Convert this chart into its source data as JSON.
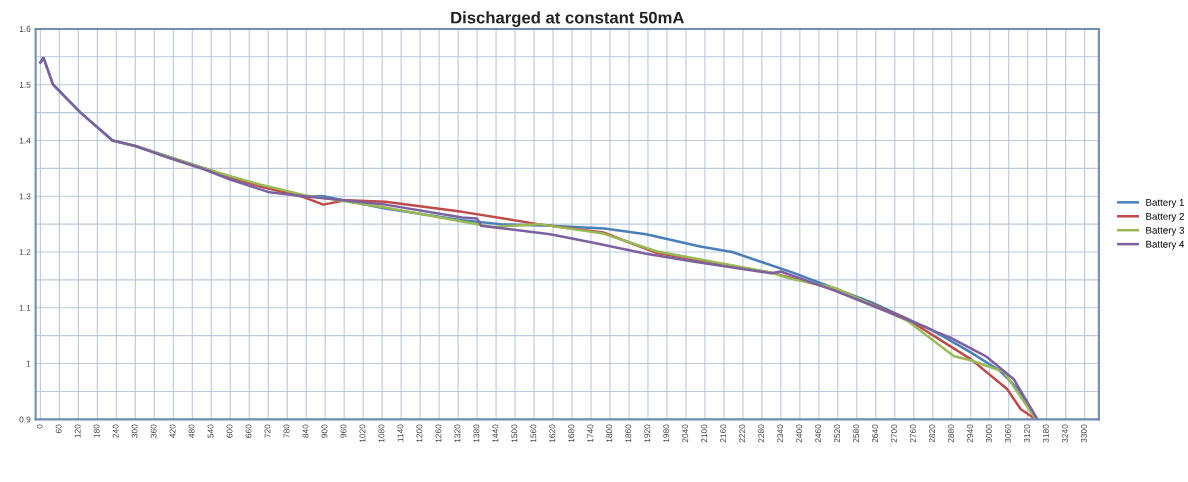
{
  "chart_data": {
    "type": "line",
    "title": "Discharged at constant 50mA",
    "xlim": [
      -15,
      3345
    ],
    "xticks": [
      0,
      60,
      120,
      180,
      240,
      300,
      360,
      420,
      480,
      540,
      600,
      660,
      720,
      780,
      840,
      900,
      960,
      1020,
      1080,
      1140,
      1200,
      1260,
      1320,
      1380,
      1440,
      1500,
      1560,
      1620,
      1680,
      1740,
      1800,
      1860,
      1920,
      1980,
      2040,
      2100,
      2160,
      2220,
      2280,
      2340,
      2400,
      2460,
      2520,
      2580,
      2640,
      2700,
      2760,
      2820,
      2880,
      2940,
      3000,
      3060,
      3120,
      3180,
      3240,
      3300
    ],
    "ylim": [
      0.9,
      1.6
    ],
    "yticks": [
      0.9,
      {
        "value": 0.95,
        "label": null
      },
      1,
      {
        "value": 1.05,
        "label": null
      },
      1.1,
      {
        "value": 1.15,
        "label": null
      },
      1.2,
      {
        "value": 1.25,
        "label": null
      },
      1.3,
      {
        "value": 1.35,
        "label": null
      },
      1.4,
      {
        "value": 1.45,
        "label": null
      },
      1.5,
      {
        "value": 1.55,
        "label": null
      },
      1.6
    ],
    "grid": true,
    "legend": "right",
    "marker": "none",
    "line_style": "solid",
    "series": [
      {
        "name": "Battery 1",
        "color": "#4a7ebb",
        "x": [
          0,
          10,
          40,
          127,
          228,
          300,
          400,
          519,
          600,
          700,
          834,
          894,
          1090,
          1333,
          1453,
          1611,
          1782,
          1914,
          2085,
          2186,
          2378,
          2625,
          2824,
          2940,
          3032,
          3089,
          3146
        ],
        "values": [
          1.54,
          1.548,
          1.5,
          1.45,
          1.4,
          1.39,
          1.372,
          1.35,
          1.334,
          1.317,
          1.3,
          1.3,
          1.278,
          1.257,
          1.25,
          1.247,
          1.242,
          1.232,
          1.21,
          1.2,
          1.163,
          1.11,
          1.058,
          1.02,
          0.987,
          0.955,
          0.902
        ]
      },
      {
        "name": "Battery 2",
        "color": "#be4b48",
        "x": [
          519,
          600,
          700,
          834,
          894,
          967,
          1090,
          1333,
          1573,
          1779,
          1949,
          2309,
          2514,
          2739,
          2940,
          3054,
          3098,
          3146
        ],
        "values": [
          1.35,
          1.334,
          1.317,
          1.298,
          1.285,
          1.293,
          1.29,
          1.272,
          1.25,
          1.235,
          1.198,
          1.163,
          1.133,
          1.08,
          1.008,
          0.955,
          0.918,
          0.9
        ]
      },
      {
        "name": "Battery 3",
        "color": "#98b954",
        "x": [
          228,
          300,
          400,
          519,
          600,
          700,
          834,
          1090,
          1428,
          1573,
          1779,
          1949,
          2309,
          2366,
          2514,
          2739,
          2887,
          2940,
          3045,
          3146
        ],
        "values": [
          1.4,
          1.39,
          1.372,
          1.35,
          1.336,
          1.32,
          1.302,
          1.28,
          1.245,
          1.25,
          1.233,
          1.201,
          1.163,
          1.153,
          1.135,
          1.077,
          1.013,
          1.006,
          0.985,
          0.9
        ]
      },
      {
        "name": "Battery 4",
        "color": "#7d60a0",
        "x": [
          0,
          10,
          40,
          127,
          228,
          300,
          400,
          519,
          600,
          724,
          834,
          1090,
          1333,
          1380,
          1393,
          1611,
          1744,
          1914,
          2063,
          2309,
          2340,
          2514,
          2681,
          2800,
          2824,
          2874,
          2988,
          3076,
          3149
        ],
        "values": [
          1.54,
          1.548,
          1.5,
          1.45,
          1.4,
          1.39,
          1.37,
          1.348,
          1.33,
          1.307,
          1.3,
          1.285,
          1.262,
          1.26,
          1.247,
          1.232,
          1.217,
          1.197,
          1.183,
          1.162,
          1.165,
          1.13,
          1.092,
          1.065,
          1.058,
          1.047,
          1.013,
          0.972,
          0.902
        ]
      }
    ]
  }
}
